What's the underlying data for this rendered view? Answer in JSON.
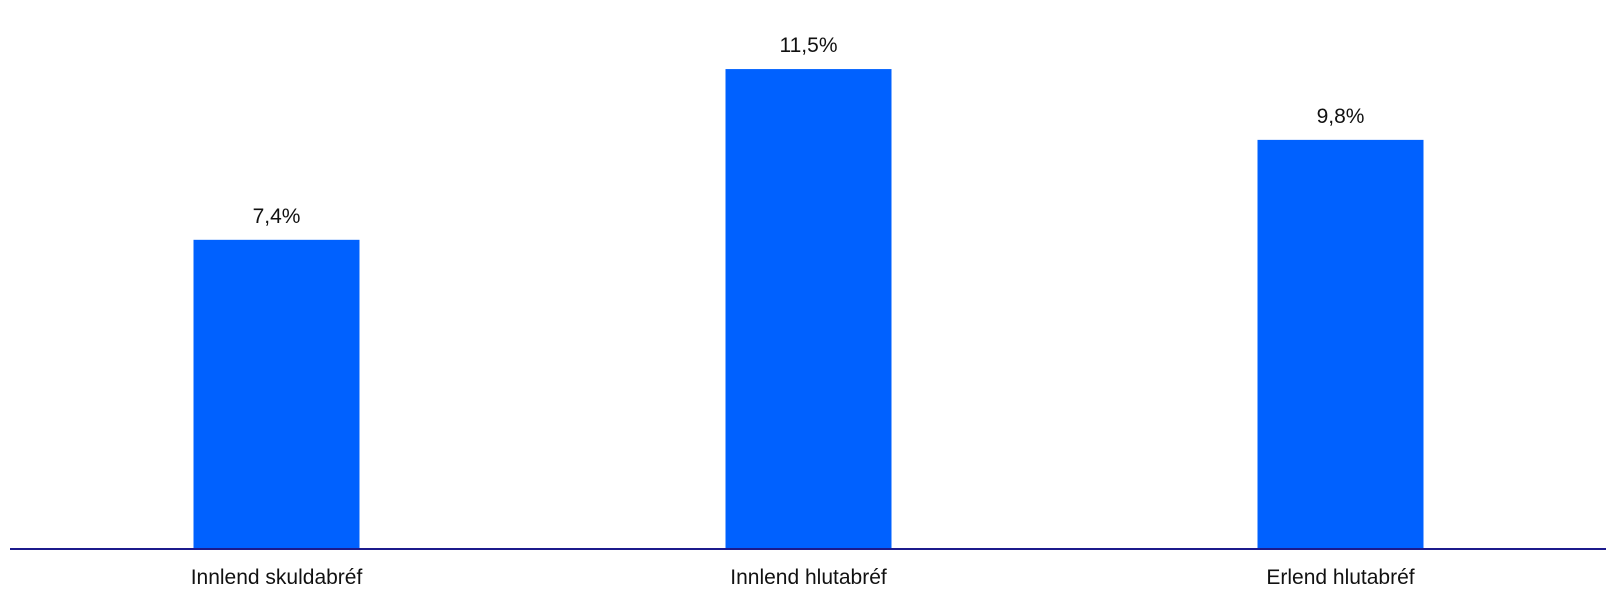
{
  "chart_data": {
    "type": "bar",
    "categories": [
      "Innlend skuldabréf",
      "Innlend hlutabréf",
      "Erlend hlutabréf"
    ],
    "values": [
      7.4,
      11.5,
      9.8
    ],
    "value_labels": [
      "7,4%",
      "11,5%",
      "9,8%"
    ],
    "title": "",
    "xlabel": "",
    "ylabel": "",
    "ylim": [
      0,
      12.15
    ],
    "grid": false,
    "legend": "none",
    "y_axis_visible": false
  },
  "colors": {
    "bar": "#0061ff",
    "axis": "#1c1a8c",
    "text": "#111111",
    "background": "#ffffff"
  }
}
